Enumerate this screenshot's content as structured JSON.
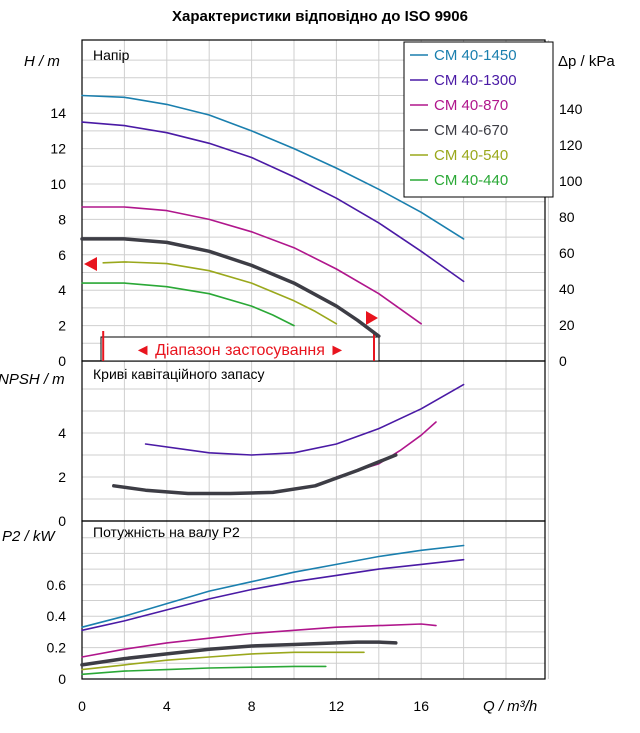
{
  "title": "Характеристики відповідно до ISO 9906",
  "colors": {
    "CM 40-1450": "#1a7fae",
    "CM 40-1300": "#4a1aa5",
    "CM 40-870": "#b0168c",
    "CM 40-670": "#3d3d45",
    "CM 40-540": "#9aa81c",
    "CM 40-440": "#2aa836",
    "range_marker": "#e8141e"
  },
  "chart_data": [
    {
      "type": "line",
      "panel": "head",
      "label": "Напір",
      "ylabel": "H / m",
      "ylabel2": "Δp / kPa",
      "xlim": [
        0,
        22
      ],
      "ylim": [
        0,
        17
      ],
      "yticks": [
        "0",
        "2",
        "4",
        "6",
        "8",
        "10",
        "12",
        "14"
      ],
      "y2ticks": [
        "0",
        "20",
        "40",
        "60",
        "80",
        "100",
        "120",
        "140"
      ],
      "legend_position": "top-right",
      "legend": [
        "CM 40-1450",
        "CM 40-1300",
        "CM 40-870",
        "CM 40-670",
        "CM 40-540",
        "CM 40-440"
      ],
      "range_label": "◄ Діапазон застосування ►",
      "range": [
        1,
        14
      ],
      "series": [
        {
          "name": "CM 40-1450",
          "x": [
            0,
            2,
            4,
            6,
            8,
            10,
            12,
            14,
            16,
            18
          ],
          "y": [
            15.0,
            14.9,
            14.5,
            13.9,
            13.0,
            12.0,
            10.9,
            9.7,
            8.4,
            6.9
          ]
        },
        {
          "name": "CM 40-1300",
          "x": [
            0,
            2,
            4,
            6,
            8,
            10,
            12,
            14,
            16,
            18
          ],
          "y": [
            13.5,
            13.3,
            12.9,
            12.3,
            11.5,
            10.4,
            9.2,
            7.8,
            6.2,
            4.5
          ]
        },
        {
          "name": "CM 40-870",
          "x": [
            0,
            2,
            4,
            6,
            8,
            10,
            12,
            14,
            16
          ],
          "y": [
            8.7,
            8.7,
            8.5,
            8.0,
            7.3,
            6.4,
            5.2,
            3.8,
            2.1
          ]
        },
        {
          "name": "CM 40-670",
          "x": [
            0,
            2,
            4,
            6,
            8,
            10,
            12,
            13,
            14
          ],
          "y": [
            6.9,
            6.9,
            6.7,
            6.2,
            5.4,
            4.4,
            3.1,
            2.3,
            1.4
          ]
        },
        {
          "name": "CM 40-540",
          "x": [
            1,
            2,
            4,
            6,
            8,
            10,
            11,
            12
          ],
          "y": [
            5.55,
            5.6,
            5.5,
            5.1,
            4.4,
            3.4,
            2.8,
            2.1
          ]
        },
        {
          "name": "CM 40-440",
          "x": [
            0,
            2,
            4,
            6,
            8,
            9,
            10
          ],
          "y": [
            4.4,
            4.4,
            4.2,
            3.8,
            3.1,
            2.6,
            2.0
          ]
        }
      ]
    },
    {
      "type": "line",
      "panel": "npsh",
      "label": "Криві кавітаційного запасу",
      "ylabel": "NPSH / m",
      "ylim": [
        0,
        6
      ],
      "yticks": [
        "0",
        "2",
        "4"
      ],
      "series": [
        {
          "name": "CM 40-1300",
          "x": [
            3,
            6,
            8,
            10,
            12,
            14,
            16,
            18
          ],
          "y": [
            3.5,
            3.1,
            3.0,
            3.1,
            3.5,
            4.2,
            5.1,
            6.2
          ]
        },
        {
          "name": "CM 40-870",
          "x": [
            12,
            13,
            14,
            15,
            16,
            16.7
          ],
          "y": [
            2.0,
            2.3,
            2.6,
            3.2,
            3.9,
            4.5
          ]
        },
        {
          "name": "CM 40-670",
          "x": [
            1.5,
            3,
            5,
            7,
            9,
            11,
            13,
            14.8
          ],
          "y": [
            1.6,
            1.4,
            1.25,
            1.25,
            1.3,
            1.6,
            2.3,
            3.0
          ]
        }
      ]
    },
    {
      "type": "line",
      "panel": "power",
      "label": "Потужність на валу P2",
      "ylabel": "P2 / kW",
      "ylim": [
        0,
        0.9
      ],
      "yticks": [
        "0",
        "0.2",
        "0.4",
        "0.6"
      ],
      "xlabel": "Q / m³/h",
      "xticks": [
        "0",
        "4",
        "8",
        "12",
        "16"
      ],
      "series": [
        {
          "name": "CM 40-1450",
          "x": [
            0,
            2,
            4,
            6,
            8,
            10,
            12,
            14,
            16,
            18
          ],
          "y": [
            0.33,
            0.4,
            0.48,
            0.56,
            0.62,
            0.68,
            0.73,
            0.78,
            0.82,
            0.85
          ]
        },
        {
          "name": "CM 40-1300",
          "x": [
            0,
            2,
            4,
            6,
            8,
            10,
            12,
            14,
            16,
            18
          ],
          "y": [
            0.31,
            0.37,
            0.44,
            0.51,
            0.57,
            0.62,
            0.66,
            0.7,
            0.73,
            0.76
          ]
        },
        {
          "name": "CM 40-870",
          "x": [
            0,
            2,
            4,
            6,
            8,
            10,
            12,
            14,
            16,
            16.7
          ],
          "y": [
            0.14,
            0.19,
            0.23,
            0.26,
            0.29,
            0.31,
            0.33,
            0.34,
            0.35,
            0.34
          ]
        },
        {
          "name": "CM 40-670",
          "x": [
            0,
            2,
            4,
            6,
            8,
            10,
            12,
            13,
            14,
            14.8
          ],
          "y": [
            0.09,
            0.13,
            0.16,
            0.19,
            0.21,
            0.22,
            0.23,
            0.235,
            0.235,
            0.23
          ]
        },
        {
          "name": "CM 40-540",
          "x": [
            0,
            2,
            4,
            6,
            8,
            10,
            12,
            13.3
          ],
          "y": [
            0.06,
            0.09,
            0.12,
            0.14,
            0.16,
            0.17,
            0.17,
            0.17
          ]
        },
        {
          "name": "CM 40-440",
          "x": [
            0,
            2,
            4,
            6,
            8,
            10,
            11.5
          ],
          "y": [
            0.03,
            0.05,
            0.06,
            0.07,
            0.075,
            0.08,
            0.08
          ]
        }
      ]
    }
  ]
}
